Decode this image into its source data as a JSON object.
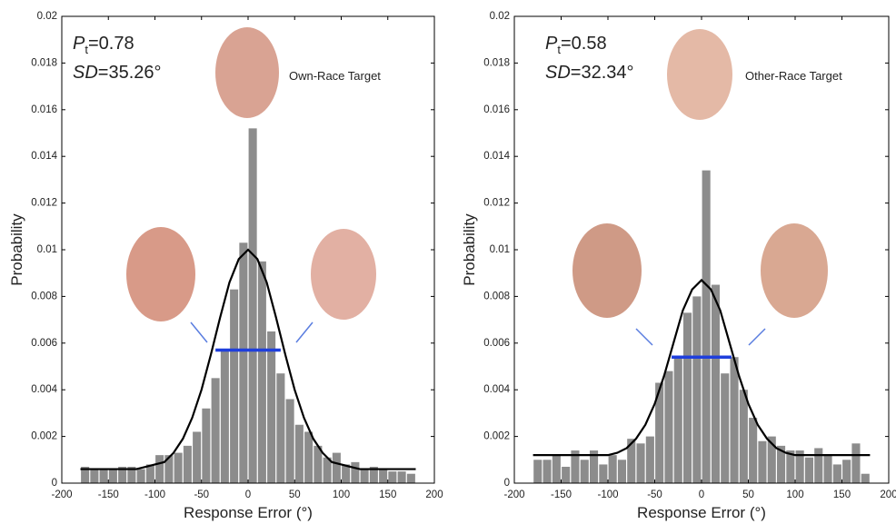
{
  "chart_data": [
    {
      "type": "histogram",
      "bins": [
        -180,
        -170,
        -160,
        -150,
        -140,
        -130,
        -120,
        -110,
        -100,
        -90,
        -80,
        -70,
        -60,
        -50,
        -40,
        -30,
        -20,
        -10,
        0,
        10,
        20,
        30,
        40,
        50,
        60,
        70,
        80,
        90,
        100,
        110,
        120,
        130,
        140,
        150,
        160,
        170,
        180
      ],
      "values": [
        0.0007,
        0.0006,
        0.0006,
        0.0006,
        0.0007,
        0.0007,
        0.0006,
        0.0008,
        0.0012,
        0.0012,
        0.0013,
        0.0016,
        0.0022,
        0.0032,
        0.0045,
        0.0057,
        0.0083,
        0.0103,
        0.0152,
        0.0095,
        0.0065,
        0.0047,
        0.0036,
        0.0025,
        0.0022,
        0.0016,
        0.0011,
        0.0013,
        0.0008,
        0.0009,
        0.0006,
        0.0007,
        0.0006,
        0.0005,
        0.0005,
        0.0004
      ],
      "color": "#8c8c8c",
      "curve": {
        "color": "#000000",
        "x": [
          -180,
          -170,
          -160,
          -150,
          -140,
          -130,
          -120,
          -110,
          -100,
          -90,
          -80,
          -70,
          -60,
          -50,
          -40,
          -30,
          -20,
          -10,
          0,
          10,
          20,
          30,
          40,
          50,
          60,
          70,
          80,
          90,
          100,
          110,
          120,
          130,
          140,
          150,
          160,
          170,
          180
        ],
        "values": [
          0.0006,
          0.0006,
          0.0006,
          0.0006,
          0.0006,
          0.0006,
          0.0006,
          0.0007,
          0.0008,
          0.0009,
          0.0013,
          0.0019,
          0.0028,
          0.004,
          0.0055,
          0.0071,
          0.0086,
          0.0096,
          0.01,
          0.0096,
          0.0086,
          0.0071,
          0.0055,
          0.004,
          0.0028,
          0.0019,
          0.0013,
          0.0009,
          0.0008,
          0.0007,
          0.0006,
          0.0006,
          0.0006,
          0.0006,
          0.0006,
          0.0006,
          0.0006
        ]
      },
      "hline": {
        "y": 0.0057,
        "xmin": -35,
        "xmax": 35,
        "color": "#1f3fdc"
      },
      "stat_1": {
        "symbol": "P",
        "subscript": "t",
        "text": "=0.78"
      },
      "stat_2": {
        "symbol": "SD",
        "text": "=35.26°"
      },
      "annotation": "Own-Race Target",
      "xlabel": "Response Error (°)",
      "ylabel": "Probability",
      "xlim": [
        -200,
        200
      ],
      "xticks": [
        -200,
        -150,
        -100,
        -50,
        0,
        50,
        100,
        150,
        200
      ],
      "ylim": [
        0,
        0.02
      ],
      "yticks": [
        0,
        0.002,
        0.004,
        0.006,
        0.008,
        0.01,
        0.012,
        0.014,
        0.016,
        0.018,
        0.02
      ]
    },
    {
      "type": "histogram",
      "bins": [
        -180,
        -170,
        -160,
        -150,
        -140,
        -130,
        -120,
        -110,
        -100,
        -90,
        -80,
        -70,
        -60,
        -50,
        -40,
        -30,
        -20,
        -10,
        0,
        10,
        20,
        30,
        40,
        50,
        60,
        70,
        80,
        90,
        100,
        110,
        120,
        130,
        140,
        150,
        160,
        170,
        180
      ],
      "values": [
        0.001,
        0.001,
        0.0012,
        0.0007,
        0.0014,
        0.001,
        0.0014,
        0.0008,
        0.0012,
        0.001,
        0.0019,
        0.0017,
        0.002,
        0.0043,
        0.0048,
        0.0054,
        0.0073,
        0.008,
        0.0134,
        0.0085,
        0.0047,
        0.0054,
        0.004,
        0.0028,
        0.0018,
        0.002,
        0.0016,
        0.0014,
        0.0014,
        0.0011,
        0.0015,
        0.0012,
        0.0008,
        0.001,
        0.0017,
        0.0004
      ],
      "color": "#8c8c8c",
      "curve": {
        "color": "#000000",
        "x": [
          -180,
          -170,
          -160,
          -150,
          -140,
          -130,
          -120,
          -110,
          -100,
          -90,
          -80,
          -70,
          -60,
          -50,
          -40,
          -30,
          -20,
          -10,
          0,
          10,
          20,
          30,
          40,
          50,
          60,
          70,
          80,
          90,
          100,
          110,
          120,
          130,
          140,
          150,
          160,
          170,
          180
        ],
        "values": [
          0.0012,
          0.0012,
          0.0012,
          0.0012,
          0.0012,
          0.0012,
          0.0012,
          0.0012,
          0.0012,
          0.0013,
          0.0015,
          0.0019,
          0.0025,
          0.0034,
          0.0046,
          0.006,
          0.0074,
          0.0083,
          0.0087,
          0.0083,
          0.0074,
          0.006,
          0.0046,
          0.0034,
          0.0025,
          0.0019,
          0.0015,
          0.0013,
          0.0012,
          0.0012,
          0.0012,
          0.0012,
          0.0012,
          0.0012,
          0.0012,
          0.0012,
          0.0012
        ]
      },
      "hline": {
        "y": 0.0054,
        "xmin": -32,
        "xmax": 32,
        "color": "#1f3fdc"
      },
      "stat_1": {
        "symbol": "P",
        "subscript": "t",
        "text": "=0.58"
      },
      "stat_2": {
        "symbol": "SD",
        "text": "=32.34°"
      },
      "annotation": "Other-Race Target",
      "xlabel": "Response Error (°)",
      "ylabel": "Probability",
      "xlim": [
        -200,
        200
      ],
      "xticks": [
        -200,
        -150,
        -100,
        -50,
        0,
        50,
        100,
        150,
        200
      ],
      "ylim": [
        0,
        0.02
      ],
      "yticks": [
        0,
        0.002,
        0.004,
        0.006,
        0.008,
        0.01,
        0.012,
        0.014,
        0.016,
        0.018,
        0.02
      ]
    }
  ]
}
